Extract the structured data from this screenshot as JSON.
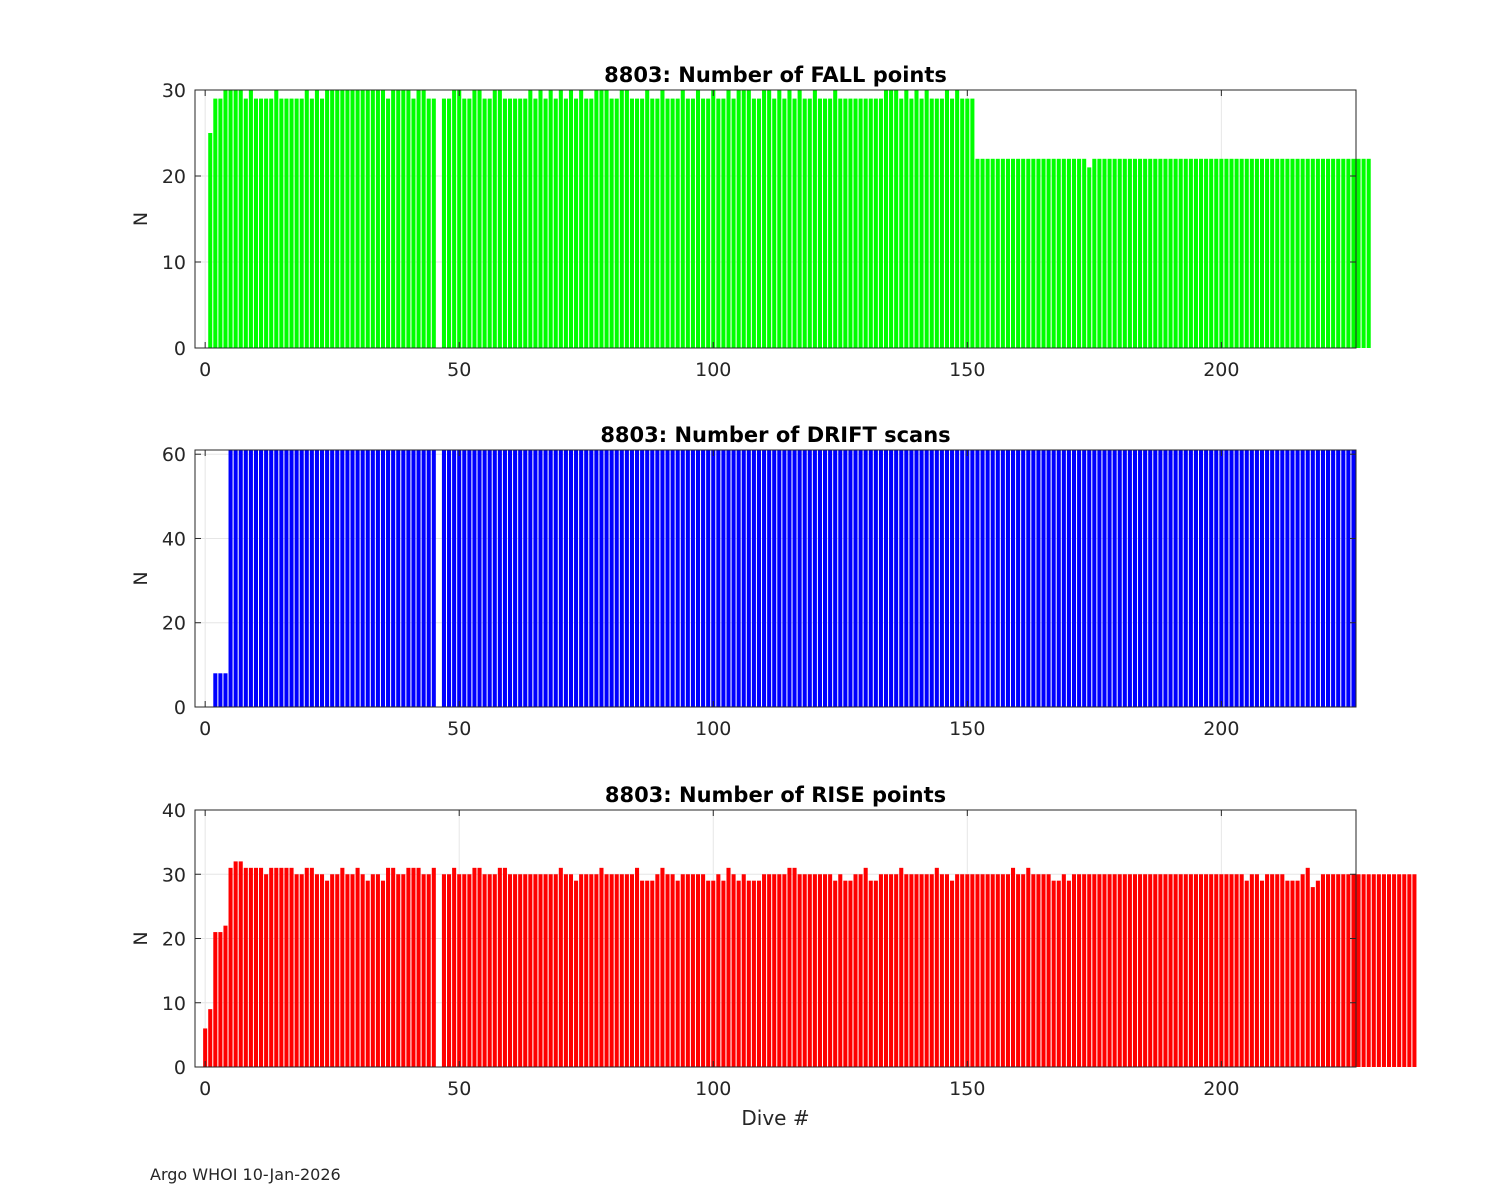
{
  "figure": {
    "credit": "Argo WHOI 10-Jan-2026"
  },
  "chart_data": [
    {
      "type": "bar",
      "title": "8803: Number of FALL points",
      "xlabel": "",
      "ylabel": "N",
      "xlim": [
        -2,
        226.5
      ],
      "ylim": [
        0,
        30
      ],
      "xticks": [
        0,
        50,
        100,
        150,
        200
      ],
      "yticks": [
        0,
        10,
        20,
        30
      ],
      "grid": true,
      "color": "#00ff00",
      "x_start": 0,
      "values": [
        0,
        25,
        29,
        29,
        30,
        30,
        30,
        30,
        29,
        30,
        29,
        29,
        29,
        29,
        30,
        29,
        29,
        29,
        29,
        29,
        30,
        29,
        30,
        29,
        30,
        30,
        30,
        30,
        30,
        30,
        30,
        30,
        30,
        30,
        30,
        30,
        29,
        30,
        30,
        30,
        30,
        29,
        30,
        30,
        29,
        29,
        0,
        29,
        29,
        30,
        30,
        29,
        29,
        30,
        30,
        29,
        29,
        30,
        30,
        29,
        29,
        29,
        29,
        29,
        30,
        29,
        30,
        29,
        30,
        29,
        30,
        29,
        30,
        29,
        30,
        29,
        29,
        30,
        30,
        30,
        29,
        29,
        30,
        30,
        29,
        29,
        29,
        30,
        29,
        29,
        30,
        29,
        29,
        29,
        30,
        29,
        29,
        30,
        29,
        29,
        30,
        29,
        29,
        30,
        29,
        30,
        30,
        30,
        29,
        29,
        30,
        30,
        29,
        30,
        29,
        30,
        29,
        30,
        29,
        29,
        30,
        29,
        29,
        29,
        30,
        29,
        29,
        29,
        29,
        29,
        29,
        29,
        29,
        29,
        30,
        30,
        30,
        29,
        30,
        29,
        30,
        29,
        30,
        29,
        29,
        29,
        30,
        29,
        30,
        29,
        29,
        29,
        22,
        22,
        22,
        22,
        22,
        22,
        22,
        22,
        22,
        22,
        22,
        22,
        22,
        22,
        22,
        22,
        22,
        22,
        22,
        22,
        22,
        22,
        21,
        22,
        22,
        22,
        22,
        22,
        22,
        22,
        22,
        22,
        22,
        22,
        22,
        22,
        22,
        22,
        22,
        22,
        22,
        22,
        22,
        22,
        22,
        22,
        22,
        22,
        22,
        22,
        22,
        22,
        22,
        22,
        22,
        22,
        22,
        22,
        22,
        22,
        22,
        22,
        22,
        22,
        22,
        22,
        22,
        22,
        22,
        22,
        22,
        22,
        22,
        22,
        22,
        22,
        22,
        22
      ]
    },
    {
      "type": "bar",
      "title": "8803: Number of DRIFT scans",
      "xlabel": "",
      "ylabel": "N",
      "xlim": [
        -2,
        226.5
      ],
      "ylim": [
        0,
        61
      ],
      "xticks": [
        0,
        50,
        100,
        150,
        200
      ],
      "yticks": [
        0,
        20,
        40,
        60
      ],
      "grid": true,
      "color": "#0000ff",
      "x_start": 0,
      "values": [
        0,
        0,
        8,
        8,
        8,
        61,
        61,
        61,
        61,
        61,
        61,
        61,
        61,
        61,
        61,
        61,
        61,
        61,
        61,
        61,
        61,
        61,
        61,
        61,
        61,
        61,
        61,
        61,
        61,
        61,
        61,
        61,
        61,
        61,
        61,
        61,
        61,
        61,
        61,
        61,
        61,
        61,
        61,
        61,
        61,
        61,
        0,
        61,
        61,
        61,
        61,
        61,
        61,
        61,
        61,
        61,
        61,
        61,
        61,
        61,
        61,
        61,
        61,
        61,
        61,
        61,
        61,
        61,
        61,
        61,
        61,
        61,
        61,
        61,
        61,
        61,
        61,
        61,
        61,
        61,
        61,
        61,
        61,
        61,
        61,
        61,
        61,
        61,
        61,
        61,
        61,
        61,
        61,
        61,
        61,
        61,
        61,
        61,
        61,
        61,
        61,
        61,
        61,
        61,
        61,
        61,
        61,
        61,
        61,
        61,
        61,
        61,
        61,
        61,
        61,
        61,
        61,
        61,
        61,
        61,
        61,
        61,
        61,
        61,
        61,
        61,
        61,
        61,
        61,
        61,
        61,
        61,
        61,
        61,
        61,
        61,
        61,
        61,
        61,
        61,
        61,
        61,
        61,
        61,
        61,
        61,
        61,
        61,
        61,
        61,
        61,
        61,
        61,
        61,
        61,
        61,
        61,
        61,
        61,
        61,
        61,
        61,
        61,
        61,
        61,
        61,
        61,
        61,
        61,
        61,
        61,
        61,
        61,
        61,
        61,
        61,
        61,
        61,
        61,
        61,
        61,
        61,
        61,
        61,
        61,
        61,
        61,
        61,
        61,
        61,
        61,
        61,
        61,
        61,
        61,
        61,
        61,
        61,
        61,
        61,
        61,
        61,
        61,
        61,
        61,
        61,
        61,
        61,
        61,
        61,
        61,
        61,
        61,
        61,
        61,
        61,
        61,
        61,
        61,
        61,
        61,
        61,
        61,
        61,
        61,
        61,
        61
      ]
    },
    {
      "type": "bar",
      "title": "8803: Number of RISE points",
      "xlabel": "Dive #",
      "ylabel": "N",
      "xlim": [
        -2,
        226.5
      ],
      "ylim": [
        0,
        40
      ],
      "xticks": [
        0,
        50,
        100,
        150,
        200
      ],
      "yticks": [
        0,
        10,
        20,
        30,
        40
      ],
      "grid": true,
      "color": "#ff0000",
      "x_start": 0,
      "values": [
        6,
        9,
        21,
        21,
        22,
        31,
        32,
        32,
        31,
        31,
        31,
        31,
        30,
        31,
        31,
        31,
        31,
        31,
        30,
        30,
        31,
        31,
        30,
        30,
        29,
        30,
        30,
        31,
        30,
        30,
        31,
        30,
        29,
        30,
        30,
        29,
        31,
        31,
        30,
        30,
        31,
        31,
        31,
        30,
        30,
        31,
        0,
        30,
        30,
        31,
        30,
        30,
        30,
        31,
        31,
        30,
        30,
        30,
        31,
        31,
        30,
        30,
        30,
        30,
        30,
        30,
        30,
        30,
        30,
        30,
        31,
        30,
        30,
        29,
        30,
        30,
        30,
        30,
        31,
        30,
        30,
        30,
        30,
        30,
        30,
        31,
        29,
        29,
        29,
        30,
        31,
        30,
        30,
        29,
        30,
        30,
        30,
        30,
        30,
        29,
        29,
        30,
        29,
        31,
        30,
        29,
        30,
        29,
        29,
        29,
        30,
        30,
        30,
        30,
        30,
        31,
        31,
        30,
        30,
        30,
        30,
        30,
        30,
        30,
        29,
        30,
        29,
        29,
        30,
        30,
        31,
        29,
        29,
        30,
        30,
        30,
        30,
        31,
        30,
        30,
        30,
        30,
        30,
        30,
        31,
        30,
        30,
        29,
        30,
        30,
        30,
        30,
        30,
        30,
        30,
        30,
        30,
        30,
        30,
        31,
        30,
        30,
        31,
        30,
        30,
        30,
        30,
        29,
        29,
        30,
        29,
        30,
        30,
        30,
        30,
        30,
        30,
        30,
        30,
        30,
        30,
        30,
        30,
        30,
        30,
        30,
        30,
        30,
        30,
        30,
        30,
        30,
        30,
        30,
        30,
        30,
        30,
        30,
        30,
        30,
        30,
        30,
        30,
        30,
        30,
        29,
        30,
        30,
        29,
        30,
        30,
        30,
        30,
        29,
        29,
        29,
        30,
        31,
        28,
        29,
        30,
        30,
        30,
        30,
        30,
        30,
        30,
        30,
        30,
        30,
        30,
        30,
        30,
        30,
        30,
        30,
        30,
        30,
        30
      ]
    }
  ]
}
